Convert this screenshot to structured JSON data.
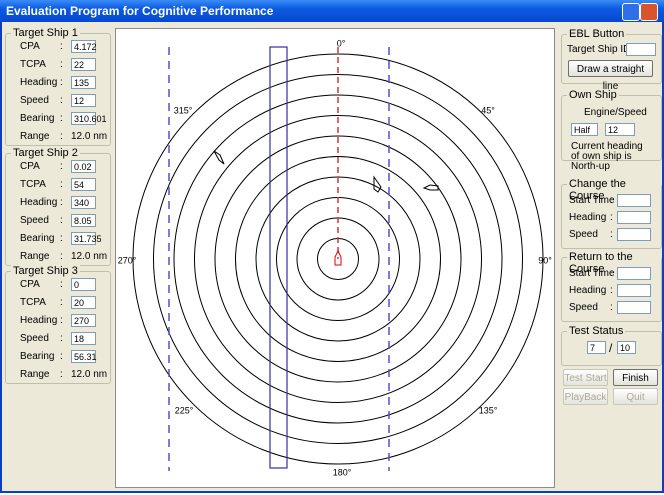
{
  "window": {
    "title": "Evaluation Program for Cognitive Performance"
  },
  "colon": ":",
  "target_ships": [
    {
      "title": "Target Ship 1",
      "fields": [
        {
          "label": "CPA",
          "value": 4.172
        },
        {
          "label": "TCPA",
          "value": 22
        },
        {
          "label": "Heading",
          "value": 135
        },
        {
          "label": "Speed",
          "value": 12
        },
        {
          "label": "Bearing",
          "value": 310.601
        }
      ],
      "range_label": "Range",
      "range_value": "12.0 nm"
    },
    {
      "title": "Target Ship 2",
      "fields": [
        {
          "label": "CPA",
          "value": 0.02
        },
        {
          "label": "TCPA",
          "value": 54
        },
        {
          "label": "Heading",
          "value": 340
        },
        {
          "label": "Speed",
          "value": 8.05
        },
        {
          "label": "Bearing",
          "value": 31.735
        }
      ],
      "range_label": "Range",
      "range_value": "12.0 nm"
    },
    {
      "title": "Target Ship 3",
      "fields": [
        {
          "label": "CPA",
          "value": 0
        },
        {
          "label": "TCPA",
          "value": 20
        },
        {
          "label": "Heading",
          "value": 270
        },
        {
          "label": "Speed",
          "value": 18
        },
        {
          "label": "Bearing",
          "value": 56.31
        }
      ],
      "range_label": "Range",
      "range_value": "12.0 nm"
    }
  ],
  "radar": {
    "bearing_labels": [
      "0°",
      "45°",
      "90°",
      "135°",
      "180°",
      "225°",
      "270°",
      "315°"
    ]
  },
  "ebl": {
    "title": "EBL Button",
    "target_id_label": "Target Ship ID :",
    "button": "Draw a straight line"
  },
  "own_ship": {
    "title": "Own Ship",
    "engine_speed_label": "Engine/Speed",
    "engine": "Half",
    "speed": 12,
    "note": "Current heading of own ship is North-up"
  },
  "change_course": {
    "title": "Change the Course",
    "fields": [
      "Start Time",
      "Heading",
      "Speed"
    ]
  },
  "return_course": {
    "title": "Return to the Course",
    "fields": [
      "Start Time",
      "Heading",
      "Speed"
    ]
  },
  "test_status": {
    "title": "Test Status",
    "current": 7,
    "separator": "/",
    "total": 10
  },
  "buttons": [
    "Test Start",
    "Finish",
    "PlayBack",
    "Quit"
  ]
}
